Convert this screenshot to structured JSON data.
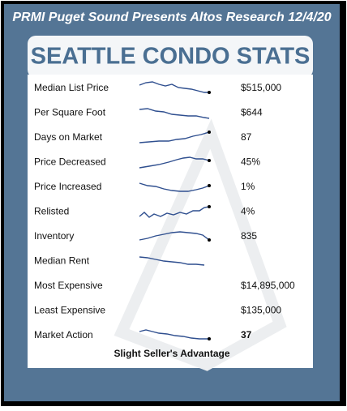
{
  "header": {
    "title": "PRMI Puget Sound Presents Altos Research 12/4/20",
    "banner": "SEATTLE CONDO STATS"
  },
  "table": {
    "rows": [
      {
        "label": "Median List Price",
        "value": "$515,000"
      },
      {
        "label": "Per Square Foot",
        "value": "$644"
      },
      {
        "label": "Days on Market",
        "value": "87"
      },
      {
        "label": "Price Decreased",
        "value": "45%"
      },
      {
        "label": "Price Increased",
        "value": "1%"
      },
      {
        "label": "Relisted",
        "value": "4%"
      },
      {
        "label": "Inventory",
        "value": "835"
      },
      {
        "label": "Median Rent"
      },
      {
        "label": "Most Expensive",
        "value": "$14,895,000"
      },
      {
        "label": "Least Expensive",
        "value": "$135,000"
      },
      {
        "label": "Market Action",
        "value": "37"
      }
    ]
  },
  "footer": {
    "text": "Slight Seller's Advantage"
  }
}
